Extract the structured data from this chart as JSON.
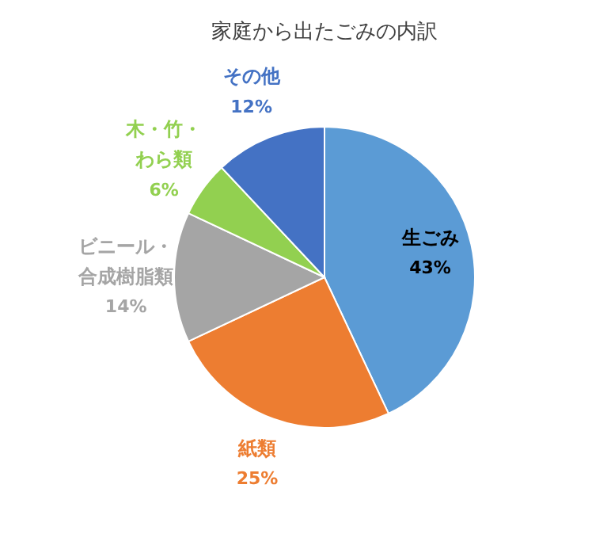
{
  "chart_data": {
    "type": "pie",
    "title": "家庭から出たごみの内訳",
    "categories": [
      "生ごみ",
      "紙類",
      "ビニール・合成樹脂類",
      "木・竹・わら類",
      "その他"
    ],
    "values": [
      43,
      25,
      14,
      6,
      12
    ],
    "colors": [
      "#5b9bd5",
      "#ed7d31",
      "#a5a5a5",
      "#92d050",
      "#4472c4"
    ],
    "value_labels": [
      "43%",
      "25%",
      "14%",
      "6%",
      "12%"
    ]
  }
}
